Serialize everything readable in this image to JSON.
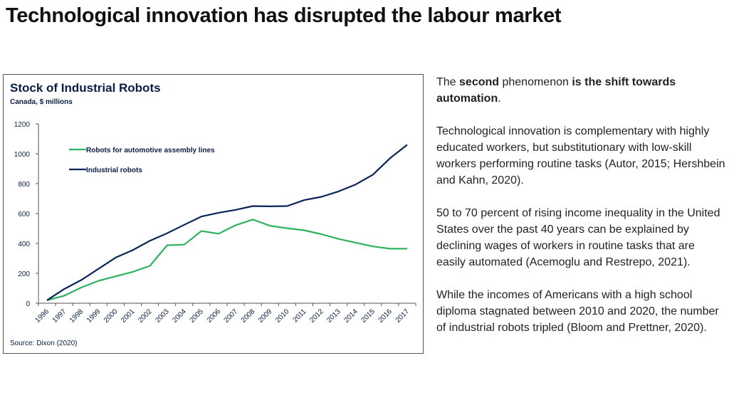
{
  "page": {
    "title": "Technological innovation has disrupted the labour market"
  },
  "chart_data": {
    "type": "line",
    "title": "Stock of Industrial Robots",
    "subtitle": "Canada, $ millions",
    "source": "Source: Dixon (2020)",
    "xlabel": "",
    "ylabel": "",
    "ylim": [
      0,
      1200
    ],
    "yticks": [
      "0",
      "200",
      "400",
      "600",
      "800",
      "1000",
      "1200"
    ],
    "categories": [
      "1996",
      "1997",
      "1998",
      "1999",
      "2000",
      "2001",
      "2002",
      "2003",
      "2004",
      "2005",
      "2006",
      "2007",
      "2008",
      "2009",
      "2010",
      "2011",
      "2012",
      "2013",
      "2014",
      "2015",
      "2016",
      "2017"
    ],
    "legend_position": "top-left",
    "series": [
      {
        "name": "Robots for automotive assembly lines",
        "color": "#2db35f",
        "values": [
          20,
          50,
          105,
          150,
          180,
          210,
          250,
          388,
          392,
          483,
          465,
          522,
          560,
          518,
          502,
          488,
          462,
          430,
          405,
          380,
          365,
          365
        ]
      },
      {
        "name": "Industrial robots",
        "color": "#0a2458",
        "values": [
          20,
          95,
          155,
          230,
          305,
          355,
          418,
          468,
          525,
          580,
          605,
          625,
          650,
          648,
          650,
          690,
          712,
          748,
          795,
          860,
          970,
          1060
        ]
      }
    ]
  },
  "text_panel": {
    "p1_pre": "The ",
    "p1_bold1": "second",
    "p1_mid": " phenomenon ",
    "p1_bold2": "is the shift towards automation",
    "p1_end": ".",
    "p2": "Technological innovation is complementary with highly educated workers, but substitutionary with low-skill workers performing routine tasks (Autor, 2015; Hershbein and Kahn, 2020).",
    "p3": "50 to 70 percent of rising income inequality in the United States over the past 40 years can be explained by declining wages of workers in routine tasks that are easily automated (Acemoglu and Restrepo, 2021).",
    "p4": "While the incomes of Americans with a high school diploma stagnated between 2010 and 2020, the number of industrial robots tripled (Bloom and Prettner, 2020)."
  }
}
